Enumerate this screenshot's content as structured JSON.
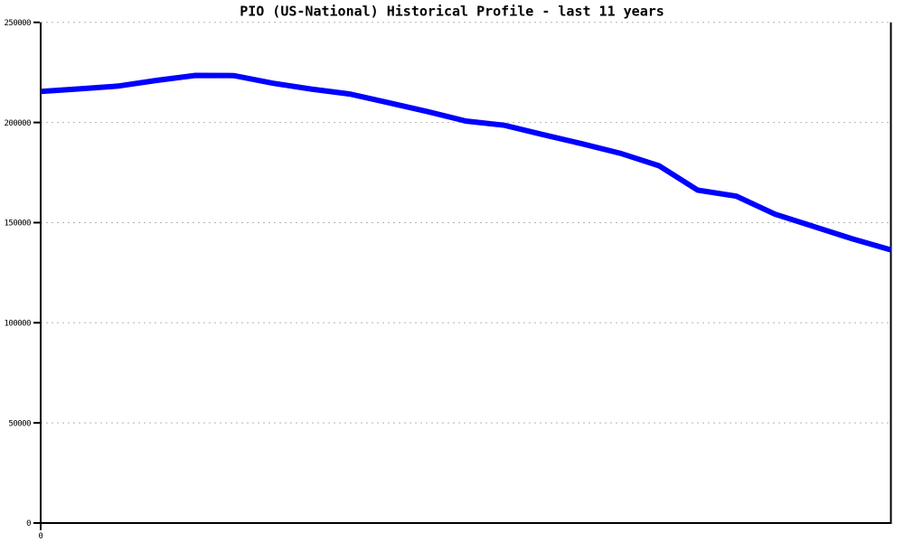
{
  "chart_data": {
    "type": "line",
    "title": "PIO (US-National) Historical Profile - last 11 years",
    "x": [
      0,
      1,
      2,
      3,
      4,
      5,
      6,
      7,
      8,
      9,
      10,
      11,
      12,
      13,
      14,
      15,
      16,
      17,
      18,
      19,
      20,
      21,
      22
    ],
    "series": [
      {
        "name": "PIO",
        "color": "#0000ff",
        "values": [
          215500,
          216800,
          218200,
          221000,
          223500,
          223400,
          219600,
          216700,
          214200,
          209900,
          205500,
          200700,
          198600,
          193900,
          189400,
          184600,
          178400,
          166200,
          163200,
          154200,
          148100,
          141900,
          136400
        ]
      }
    ],
    "xlabel": "",
    "ylabel": "",
    "ylim": [
      0,
      250000
    ],
    "yticks": [
      0,
      50000,
      100000,
      150000,
      200000,
      250000
    ],
    "ytick_labels": [
      "0",
      "50000",
      "100000",
      "150000",
      "200000",
      "250000"
    ],
    "xtick_labels": [
      "0"
    ],
    "grid": "horizontal-dashed",
    "legend_position": "none"
  },
  "colors": {
    "line": "#0000ff",
    "axis": "#000000",
    "grid": "#b4b4b4",
    "background": "#ffffff",
    "text": "#000000"
  }
}
